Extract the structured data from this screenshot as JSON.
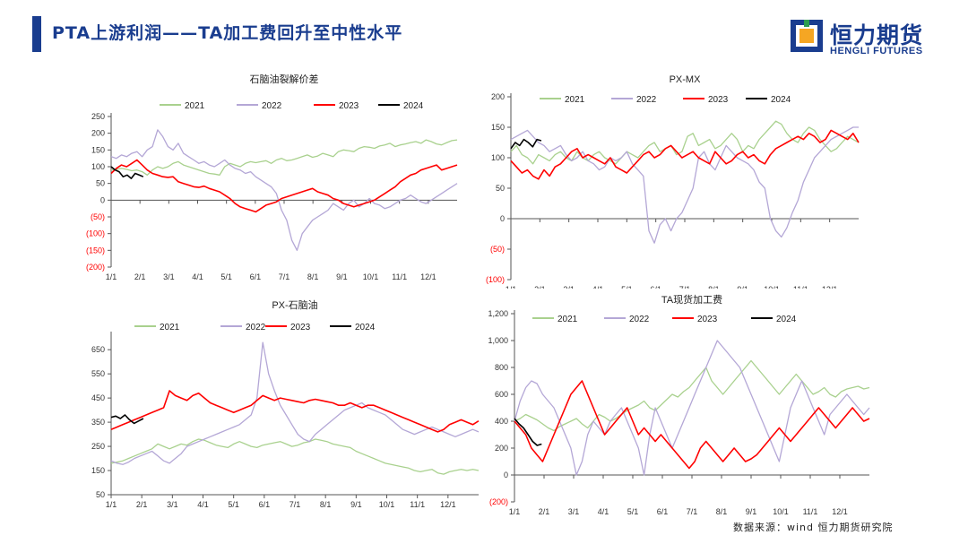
{
  "header": {
    "title": "PTA上游利润——TA加工费回升至中性水平",
    "logo_cn": "恒力期货",
    "logo_en": "HENGLI FUTURES",
    "accent_color": "#1a3d8f"
  },
  "footer": {
    "source": "数据来源：wind 恒力期货研究院"
  },
  "series_colors": {
    "2021": "#a9d18e",
    "2022": "#b4a7d6",
    "2023": "#ff0000",
    "2024": "#000000"
  },
  "chart_data": [
    {
      "type": "line",
      "title": "石脑油裂解价差",
      "xticks": [
        "1/1",
        "2/1",
        "3/1",
        "4/1",
        "5/1",
        "6/1",
        "7/1",
        "8/1",
        "9/1",
        "10/1",
        "11/1",
        "12/1"
      ],
      "yticks": [
        "250",
        "200",
        "150",
        "100",
        "50",
        "0",
        "(50)",
        "(100)",
        "(150)",
        "(200)"
      ],
      "ylim": [
        -200,
        250
      ],
      "negative_tick_color": "#ff0000",
      "legend_position": "top",
      "series": [
        {
          "name": "2021",
          "values": [
            90,
            92,
            95,
            92,
            88,
            90,
            85,
            75,
            90,
            100,
            95,
            100,
            110,
            115,
            105,
            100,
            95,
            90,
            85,
            80,
            78,
            75,
            100,
            110,
            105,
            100,
            110,
            115,
            112,
            115,
            118,
            110,
            120,
            125,
            118,
            120,
            125,
            130,
            135,
            128,
            132,
            140,
            135,
            130,
            145,
            150,
            148,
            145,
            155,
            160,
            158,
            155,
            162,
            165,
            170,
            160,
            165,
            168,
            172,
            175,
            170,
            180,
            175,
            168,
            165,
            172,
            178,
            180
          ]
        },
        {
          "name": "2022",
          "values": [
            130,
            125,
            135,
            130,
            140,
            145,
            130,
            150,
            160,
            210,
            190,
            160,
            150,
            170,
            140,
            130,
            120,
            110,
            115,
            105,
            100,
            110,
            120,
            105,
            95,
            90,
            80,
            85,
            70,
            60,
            50,
            40,
            20,
            -30,
            -60,
            -120,
            -150,
            -100,
            -80,
            -60,
            -50,
            -40,
            -30,
            -10,
            -20,
            -30,
            -10,
            0,
            -20,
            -10,
            5,
            -10,
            -15,
            -25,
            -20,
            -10,
            0,
            5,
            15,
            5,
            -5,
            -10,
            0,
            10,
            20,
            30,
            40,
            50
          ]
        },
        {
          "name": "2023",
          "values": [
            80,
            95,
            105,
            100,
            110,
            120,
            105,
            90,
            80,
            75,
            70,
            68,
            70,
            55,
            50,
            45,
            40,
            38,
            42,
            35,
            30,
            25,
            15,
            5,
            -10,
            -20,
            -25,
            -30,
            -35,
            -25,
            -15,
            -10,
            -5,
            5,
            10,
            15,
            20,
            25,
            30,
            35,
            25,
            20,
            15,
            5,
            0,
            -10,
            -15,
            -20,
            -15,
            -10,
            -5,
            0,
            10,
            20,
            30,
            40,
            55,
            65,
            75,
            80,
            90,
            95,
            100,
            105,
            90,
            95,
            100,
            105
          ]
        },
        {
          "name": "2024",
          "values": [
            100,
            90,
            85,
            70,
            75,
            65,
            80,
            75,
            70
          ]
        }
      ]
    },
    {
      "type": "line",
      "title": "PX-MX",
      "xticks": [
        "1/1",
        "2/1",
        "3/1",
        "4/1",
        "5/1",
        "6/1",
        "7/1",
        "8/1",
        "9/1",
        "10/1",
        "11/1",
        "12/1"
      ],
      "yticks": [
        "200",
        "150",
        "100",
        "50",
        "0",
        "(50)",
        "(100)"
      ],
      "ylim": [
        -100,
        200
      ],
      "negative_tick_color": "#ff0000",
      "legend_position": "top",
      "series": [
        {
          "name": "2021",
          "values": [
            110,
            120,
            105,
            100,
            90,
            105,
            100,
            95,
            105,
            110,
            100,
            95,
            110,
            100,
            95,
            105,
            110,
            100,
            95,
            90,
            100,
            110,
            105,
            100,
            110,
            120,
            125,
            110,
            115,
            120,
            105,
            110,
            135,
            140,
            120,
            125,
            130,
            115,
            120,
            130,
            140,
            130,
            110,
            120,
            115,
            130,
            140,
            150,
            160,
            155,
            140,
            130,
            125,
            140,
            150,
            145,
            130,
            120,
            110,
            115,
            125,
            135,
            130,
            125
          ]
        },
        {
          "name": "2022",
          "values": [
            130,
            135,
            140,
            145,
            135,
            125,
            120,
            110,
            115,
            120,
            105,
            95,
            100,
            110,
            95,
            90,
            80,
            85,
            100,
            95,
            100,
            110,
            90,
            80,
            70,
            -20,
            -40,
            -10,
            0,
            -20,
            0,
            10,
            30,
            50,
            100,
            110,
            90,
            80,
            100,
            120,
            110,
            100,
            95,
            90,
            80,
            60,
            50,
            0,
            -20,
            -30,
            -15,
            10,
            30,
            60,
            80,
            100,
            110,
            120,
            130,
            135,
            140,
            145,
            150,
            150
          ]
        },
        {
          "name": "2023",
          "values": [
            95,
            85,
            75,
            80,
            70,
            65,
            80,
            70,
            85,
            90,
            100,
            110,
            115,
            100,
            105,
            100,
            95,
            90,
            100,
            85,
            80,
            75,
            85,
            95,
            105,
            110,
            100,
            105,
            115,
            120,
            110,
            100,
            105,
            110,
            100,
            95,
            90,
            110,
            100,
            90,
            95,
            105,
            110,
            100,
            105,
            95,
            90,
            105,
            115,
            120,
            125,
            130,
            135,
            130,
            140,
            135,
            125,
            130,
            145,
            140,
            135,
            130,
            140,
            125
          ]
        },
        {
          "name": "2024",
          "values": [
            115,
            125,
            120,
            130,
            125,
            118,
            130,
            128
          ]
        }
      ]
    },
    {
      "type": "line",
      "title": "PX-石脑油",
      "xticks": [
        "1/1",
        "2/1",
        "3/1",
        "4/1",
        "5/1",
        "6/1",
        "7/1",
        "8/1",
        "9/1",
        "10/1",
        "11/1",
        "12/1"
      ],
      "yticks": [
        "50",
        "150",
        "250",
        "350",
        "450",
        "550",
        "650"
      ],
      "ylim": [
        50,
        710
      ],
      "legend_position": "top",
      "series": [
        {
          "name": "2021",
          "values": [
            180,
            185,
            190,
            200,
            210,
            220,
            230,
            240,
            260,
            250,
            240,
            250,
            260,
            255,
            270,
            280,
            275,
            265,
            255,
            250,
            245,
            260,
            270,
            260,
            250,
            245,
            255,
            260,
            265,
            270,
            260,
            250,
            255,
            265,
            270,
            280,
            275,
            270,
            260,
            255,
            250,
            245,
            230,
            220,
            210,
            200,
            190,
            180,
            175,
            170,
            165,
            160,
            150,
            145,
            150,
            155,
            140,
            135,
            145,
            150,
            155,
            150,
            155,
            150
          ]
        },
        {
          "name": "2022",
          "values": [
            190,
            180,
            175,
            185,
            200,
            210,
            220,
            230,
            210,
            190,
            180,
            200,
            220,
            250,
            260,
            270,
            280,
            290,
            300,
            310,
            320,
            330,
            340,
            360,
            380,
            450,
            680,
            550,
            480,
            420,
            380,
            340,
            300,
            280,
            270,
            300,
            320,
            340,
            360,
            380,
            400,
            410,
            420,
            430,
            410,
            400,
            390,
            380,
            360,
            340,
            320,
            310,
            300,
            310,
            320,
            330,
            320,
            310,
            300,
            290,
            300,
            310,
            320,
            310
          ]
        },
        {
          "name": "2023",
          "values": [
            320,
            330,
            340,
            350,
            360,
            370,
            380,
            390,
            400,
            410,
            480,
            460,
            450,
            440,
            460,
            470,
            450,
            430,
            420,
            410,
            400,
            390,
            400,
            410,
            420,
            440,
            460,
            450,
            440,
            450,
            445,
            440,
            435,
            430,
            440,
            445,
            440,
            435,
            430,
            420,
            420,
            430,
            420,
            410,
            420,
            420,
            410,
            400,
            390,
            380,
            370,
            360,
            350,
            340,
            330,
            320,
            310,
            320,
            340,
            350,
            360,
            350,
            340,
            355
          ]
        },
        {
          "name": "2024",
          "values": [
            370,
            375,
            365,
            380,
            360,
            345,
            355,
            365
          ]
        }
      ]
    },
    {
      "type": "line",
      "title": "TA现货加工费",
      "xticks": [
        "1/1",
        "2/1",
        "3/1",
        "4/1",
        "5/1",
        "6/1",
        "7/1",
        "8/1",
        "9/1",
        "10/1",
        "11/1",
        "12/1"
      ],
      "yticks": [
        "1,200",
        "1,000",
        "800",
        "600",
        "400",
        "200",
        "0",
        "(200)"
      ],
      "ylim": [
        -200,
        1200
      ],
      "negative_tick_color": "#ff0000",
      "legend_position": "top",
      "series": [
        {
          "name": "2021",
          "values": [
            400,
            420,
            450,
            430,
            410,
            380,
            350,
            330,
            360,
            380,
            400,
            420,
            380,
            350,
            400,
            450,
            430,
            400,
            420,
            450,
            480,
            500,
            520,
            550,
            500,
            480,
            520,
            560,
            600,
            580,
            620,
            650,
            700,
            750,
            800,
            700,
            650,
            600,
            650,
            700,
            750,
            800,
            850,
            800,
            750,
            700,
            650,
            600,
            650,
            700,
            750,
            700,
            650,
            600,
            620,
            650,
            600,
            580,
            620,
            640,
            650,
            660,
            640,
            650
          ]
        },
        {
          "name": "2022",
          "values": [
            400,
            550,
            650,
            700,
            680,
            600,
            550,
            500,
            400,
            300,
            200,
            0,
            100,
            300,
            400,
            350,
            300,
            400,
            450,
            500,
            400,
            300,
            200,
            0,
            300,
            500,
            400,
            300,
            200,
            300,
            400,
            500,
            600,
            700,
            800,
            900,
            1000,
            950,
            900,
            850,
            800,
            700,
            600,
            500,
            400,
            300,
            200,
            100,
            300,
            500,
            600,
            700,
            600,
            500,
            400,
            300,
            450,
            500,
            550,
            600,
            550,
            500,
            450,
            500
          ]
        },
        {
          "name": "2023",
          "values": [
            400,
            350,
            300,
            200,
            150,
            100,
            200,
            300,
            400,
            500,
            600,
            650,
            700,
            600,
            500,
            400,
            300,
            350,
            400,
            450,
            500,
            400,
            300,
            350,
            300,
            250,
            300,
            250,
            200,
            150,
            100,
            50,
            100,
            200,
            250,
            200,
            150,
            100,
            150,
            200,
            150,
            100,
            120,
            150,
            200,
            250,
            300,
            350,
            300,
            250,
            300,
            350,
            400,
            450,
            500,
            450,
            400,
            350,
            400,
            450,
            500,
            450,
            400,
            420
          ]
        },
        {
          "name": "2024",
          "values": [
            420,
            380,
            350,
            300,
            250,
            220,
            230
          ]
        }
      ]
    }
  ]
}
